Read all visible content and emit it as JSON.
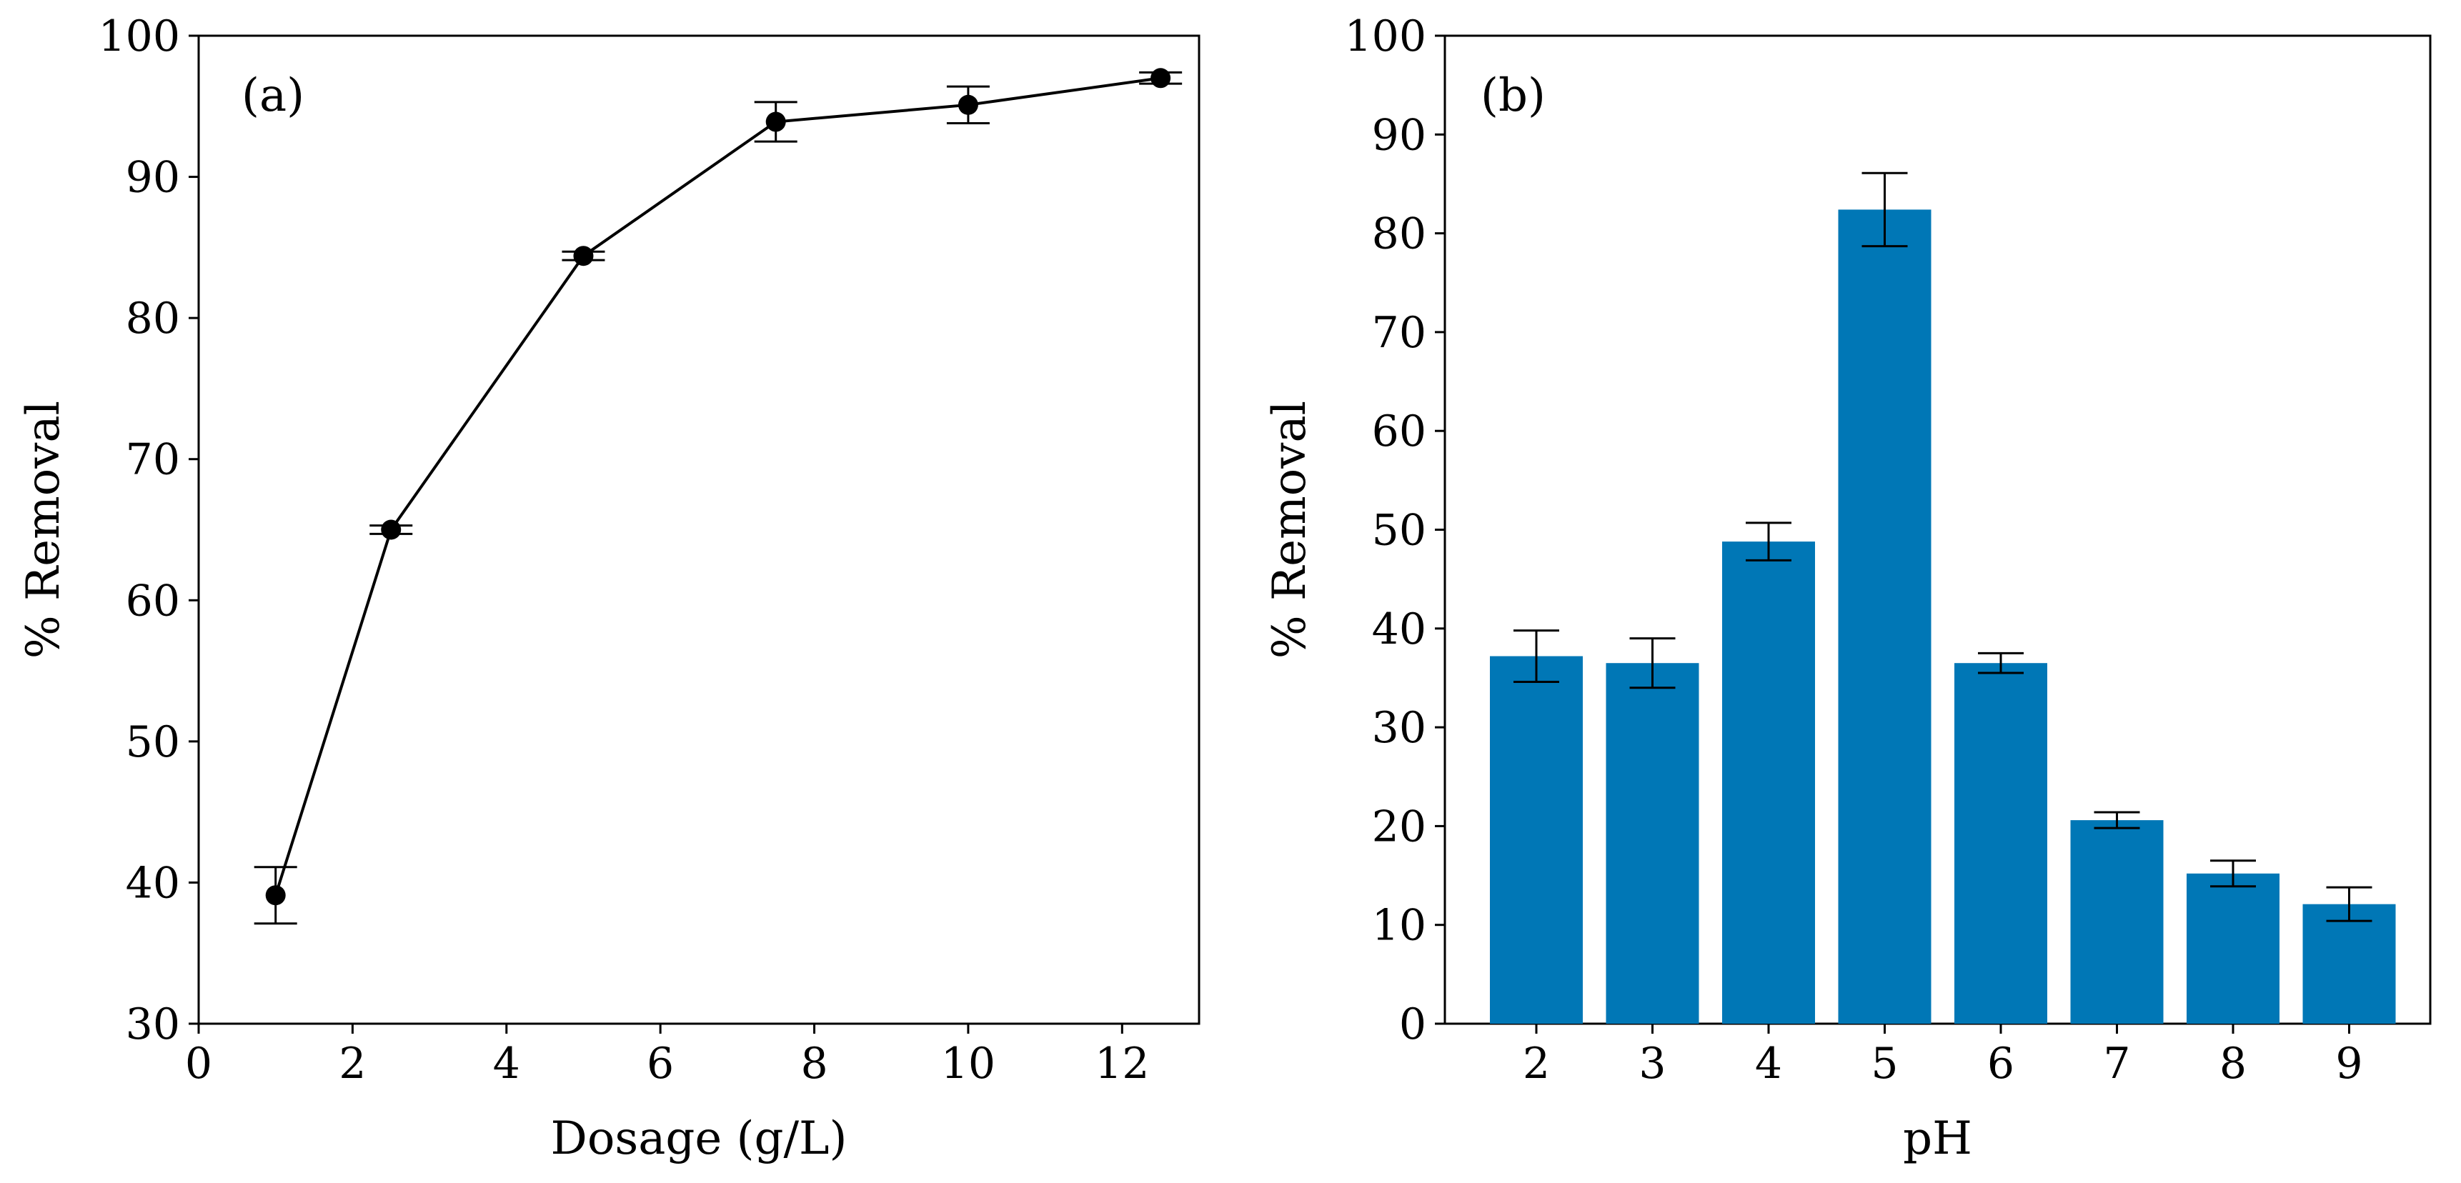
{
  "chart_data": [
    {
      "panel_label": "(a)",
      "type": "line",
      "xlabel": "Dosage (g/L)",
      "ylabel": "% Removal",
      "xlim": [
        0,
        13
      ],
      "ylim": [
        30,
        100
      ],
      "xticks": [
        0,
        2,
        4,
        6,
        8,
        10,
        12
      ],
      "yticks": [
        30,
        40,
        50,
        60,
        70,
        80,
        90,
        100
      ],
      "x": [
        1,
        2.5,
        5,
        7.5,
        10,
        12.5
      ],
      "y": [
        39.1,
        65.0,
        84.4,
        93.9,
        95.1,
        97.0
      ],
      "error": [
        2.0,
        0.3,
        0.3,
        1.4,
        1.3,
        0.4
      ],
      "grid": false,
      "line_color": "#000000",
      "marker": "circle"
    },
    {
      "panel_label": "(b)",
      "type": "bar",
      "xlabel": "pH",
      "ylabel": "% Removal",
      "ylim": [
        0,
        100
      ],
      "yticks": [
        0,
        10,
        20,
        30,
        40,
        50,
        60,
        70,
        80,
        90,
        100
      ],
      "categories": [
        "2",
        "3",
        "4",
        "5",
        "6",
        "7",
        "8",
        "9"
      ],
      "values": [
        37.2,
        36.5,
        48.8,
        82.4,
        36.5,
        20.6,
        15.2,
        12.1
      ],
      "error": [
        2.6,
        2.5,
        1.9,
        3.7,
        1.0,
        0.8,
        1.3,
        1.7
      ],
      "grid": false,
      "bar_color": "#0077b6"
    }
  ]
}
